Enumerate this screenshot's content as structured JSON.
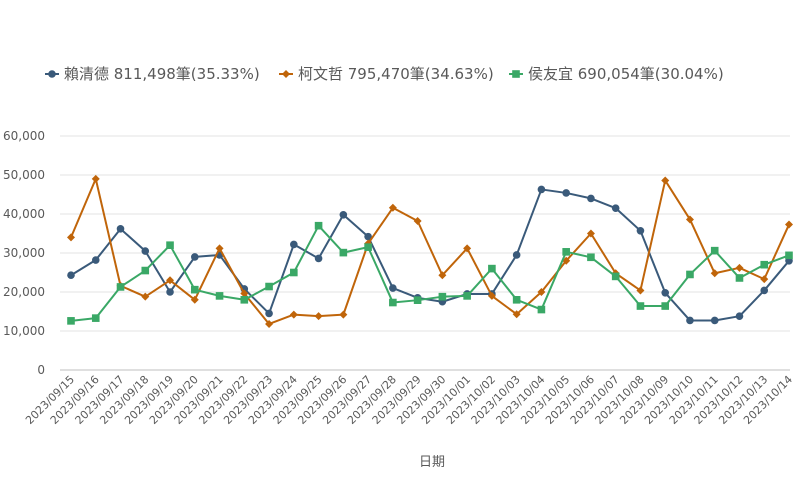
{
  "chart_data": {
    "type": "line",
    "title": "",
    "xlabel": "日期",
    "ylabel": "",
    "ylim": [
      0,
      60000
    ],
    "yticks": [
      0,
      10000,
      20000,
      30000,
      40000,
      50000,
      60000
    ],
    "ytick_labels": [
      "0",
      "10,000",
      "20,000",
      "30,000",
      "40,000",
      "50,000",
      "60,000"
    ],
    "grid": true,
    "legend_position": "top-left",
    "categories": [
      "2023/09/15",
      "2023/09/16",
      "2023/09/17",
      "2023/09/18",
      "2023/09/19",
      "2023/09/20",
      "2023/09/21",
      "2023/09/22",
      "2023/09/23",
      "2023/09/24",
      "2023/09/25",
      "2023/09/26",
      "2023/09/27",
      "2023/09/28",
      "2023/09/29",
      "2023/09/30",
      "2023/10/01",
      "2023/10/02",
      "2023/10/03",
      "2023/10/04",
      "2023/10/05",
      "2023/10/06",
      "2023/10/07",
      "2023/10/08",
      "2023/10/09",
      "2023/10/10",
      "2023/10/11",
      "2023/10/12",
      "2023/10/13",
      "2023/10/14"
    ],
    "series": [
      {
        "name": "賴清德 811,498筆(35.33%)",
        "color": "#3a5a7a",
        "marker": "circle",
        "values": [
          24300,
          28200,
          36200,
          30500,
          20000,
          29000,
          29500,
          20800,
          14500,
          32200,
          28600,
          39800,
          34200,
          21000,
          18500,
          17500,
          19500,
          19500,
          29500,
          46300,
          45400,
          44000,
          41500,
          35700,
          19800,
          12700,
          12700,
          13800,
          20400,
          28000
        ]
      },
      {
        "name": "柯文哲 795,470筆(34.63%)",
        "color": "#c0650a",
        "marker": "diamond",
        "values": [
          34000,
          49000,
          21600,
          18800,
          23000,
          18000,
          31200,
          19600,
          11800,
          14200,
          13800,
          14200,
          32400,
          41600,
          38200,
          24300,
          31200,
          19000,
          14300,
          20000,
          28000,
          35000,
          24800,
          20400,
          48600,
          38600,
          24800,
          26200,
          23300,
          37300
        ]
      },
      {
        "name": "侯友宜 690,054筆(30.04%)",
        "color": "#3aa866",
        "marker": "square",
        "values": [
          12600,
          13300,
          21300,
          25500,
          32000,
          20600,
          19000,
          18000,
          21400,
          25000,
          37000,
          30100,
          31500,
          17300,
          17900,
          18800,
          19000,
          26000,
          18000,
          15500,
          30300,
          28900,
          24000,
          16400,
          16400,
          24500,
          30600,
          23600,
          27000,
          29400
        ]
      }
    ]
  }
}
